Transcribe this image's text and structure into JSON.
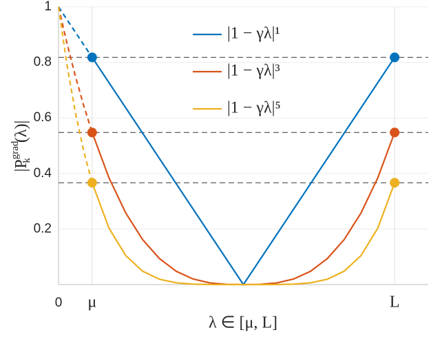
{
  "chart_data": {
    "type": "line",
    "xlabel": "λ ∈ [μ, L]",
    "ylabel": {
      "base": "|P",
      "sup": "grad",
      "sub": "k",
      "tail": "(λ)|"
    },
    "xlim": [
      0,
      11
    ],
    "ylim": [
      0,
      1
    ],
    "xticks": [
      0,
      {
        "value": 1,
        "label": "μ"
      },
      {
        "value": 10,
        "label": "L"
      }
    ],
    "yticks": [
      0.2,
      0.4,
      0.6,
      0.8,
      1
    ],
    "grid": true,
    "legend": "top-center",
    "x": [
      1,
      1.5,
      2,
      2.5,
      3,
      3.5,
      4,
      4.5,
      5,
      5.5,
      6,
      6.5,
      7,
      7.5,
      8,
      8.5,
      9,
      9.5,
      10
    ],
    "x_ext": [
      0,
      0.25,
      0.5,
      0.75,
      1
    ],
    "hlines": [
      0.8182,
      0.5477,
      0.3667
    ],
    "series": [
      {
        "name": "|1 − γλ|¹",
        "color": "#0072BD",
        "values": [
          0.8182,
          0.7273,
          0.6364,
          0.5455,
          0.4545,
          0.3636,
          0.2727,
          0.1818,
          0.0909,
          0,
          0.0909,
          0.1818,
          0.2727,
          0.3636,
          0.4545,
          0.5455,
          0.6364,
          0.7273,
          0.8182
        ],
        "ext_values": [
          1,
          0.9545,
          0.9091,
          0.8636,
          0.8182
        ]
      },
      {
        "name": "|1 − γλ|³",
        "color": "#D95319",
        "values": [
          0.5477,
          0.3847,
          0.2577,
          0.1623,
          0.0939,
          0.0481,
          0.0203,
          0.006,
          0.0008,
          0,
          0.0008,
          0.006,
          0.0203,
          0.0481,
          0.0939,
          0.1623,
          0.2577,
          0.3847,
          0.5477
        ],
        "ext_values": [
          1,
          0.8698,
          0.7513,
          0.6442,
          0.5477
        ]
      },
      {
        "name": "|1 − γλ|⁵",
        "color": "#EDB120",
        "values": [
          0.3667,
          0.2035,
          0.1044,
          0.0483,
          0.0194,
          0.0064,
          0.0015,
          0.0002,
          0,
          0,
          0,
          0.0002,
          0.0015,
          0.0064,
          0.0194,
          0.0483,
          0.1044,
          0.2035,
          0.3667
        ],
        "ext_values": [
          1,
          0.7925,
          0.6209,
          0.4805,
          0.3667
        ]
      }
    ]
  }
}
